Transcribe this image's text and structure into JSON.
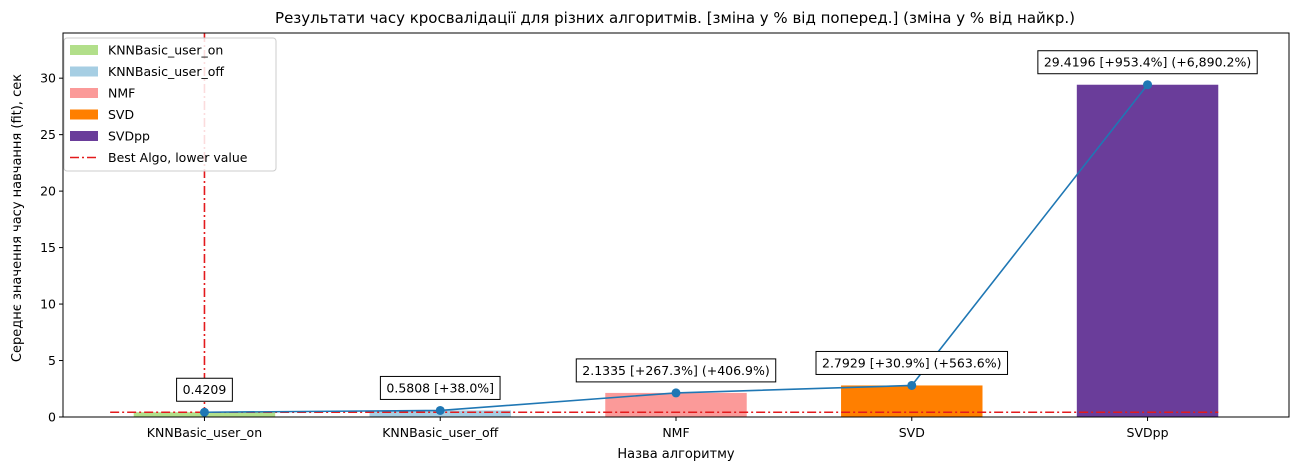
{
  "chart_data": {
    "type": "bar",
    "title": "Результати часу кросвалідації для різних алгоритмів. [зміна у % від поперед.] (зміна у % від найкр.)",
    "xlabel": "Назва алгоритму",
    "ylabel": "Середнє значення часу навчання (fit), сек",
    "categories": [
      "KNNBasic_user_on",
      "KNNBasic_user_off",
      "NMF",
      "SVD",
      "SVDpp"
    ],
    "values": [
      0.4209,
      0.5808,
      2.1335,
      2.7929,
      29.4196
    ],
    "bar_colors": [
      "#b2df8a",
      "#a6cee3",
      "#fb9a99",
      "#ff7f00",
      "#6a3d9a"
    ],
    "line_color": "#1f77b4",
    "reference_color": "#e31a1c",
    "annotations": [
      "0.4209",
      "0.5808 [+38.0%]",
      "2.1335 [+267.3%] (+406.9%)",
      "2.7929 [+30.9%] (+563.6%)",
      "29.4196 [+953.4%] (+6,890.2%)"
    ],
    "best_value": 0.4209,
    "best_index": 0,
    "ylim": [
      0,
      34
    ],
    "yticks": [
      0,
      5,
      10,
      15,
      20,
      25,
      30
    ],
    "legend": {
      "placement": "top-left",
      "entries": [
        "KNNBasic_user_on",
        "KNNBasic_user_off",
        "NMF",
        "SVD",
        "SVDpp",
        "Best Algo, lower value"
      ]
    },
    "grid": false
  }
}
